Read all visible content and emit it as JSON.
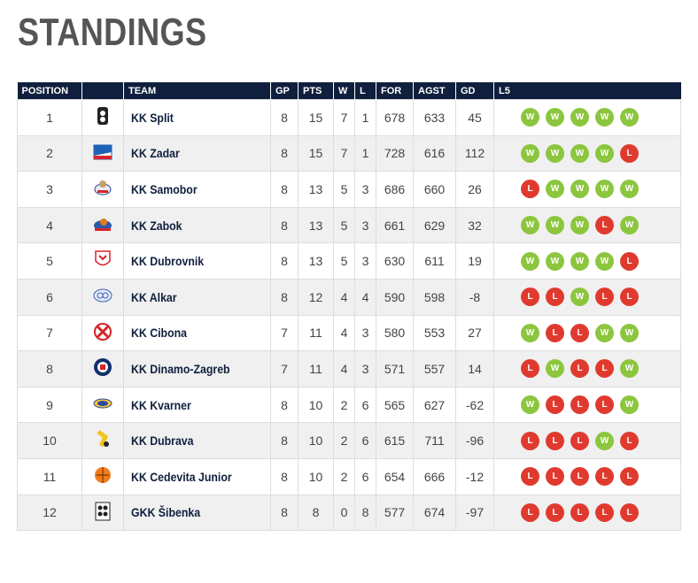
{
  "page": {
    "title": "STANDINGS"
  },
  "colors": {
    "header_bg": "#0f1f3d",
    "win": "#8cc63f",
    "loss": "#e03a2f",
    "alt_row": "#f0f0f0"
  },
  "table": {
    "headers": {
      "position": "POSITION",
      "team": "TEAM",
      "gp": "GP",
      "pts": "PTS",
      "w": "W",
      "l": "L",
      "for": "FOR",
      "agst": "AGST",
      "gd": "GD",
      "l5": "L5"
    },
    "rows": [
      {
        "pos": "1",
        "logo": "split-logo",
        "team": "KK Split",
        "gp": "8",
        "pts": "15",
        "w": "7",
        "l": "1",
        "for": "678",
        "agst": "633",
        "gd": "45",
        "l5": [
          "W",
          "W",
          "W",
          "W",
          "W"
        ]
      },
      {
        "pos": "2",
        "logo": "zadar-logo",
        "team": "KK Zadar",
        "gp": "8",
        "pts": "15",
        "w": "7",
        "l": "1",
        "for": "728",
        "agst": "616",
        "gd": "112",
        "l5": [
          "W",
          "W",
          "W",
          "W",
          "L"
        ]
      },
      {
        "pos": "3",
        "logo": "samobor-logo",
        "team": "KK Samobor",
        "gp": "8",
        "pts": "13",
        "w": "5",
        "l": "3",
        "for": "686",
        "agst": "660",
        "gd": "26",
        "l5": [
          "L",
          "W",
          "W",
          "W",
          "W"
        ]
      },
      {
        "pos": "4",
        "logo": "zabok-logo",
        "team": "KK Zabok",
        "gp": "8",
        "pts": "13",
        "w": "5",
        "l": "3",
        "for": "661",
        "agst": "629",
        "gd": "32",
        "l5": [
          "W",
          "W",
          "W",
          "L",
          "W"
        ]
      },
      {
        "pos": "5",
        "logo": "dubrovnik-logo",
        "team": "KK Dubrovnik",
        "gp": "8",
        "pts": "13",
        "w": "5",
        "l": "3",
        "for": "630",
        "agst": "611",
        "gd": "19",
        "l5": [
          "W",
          "W",
          "W",
          "W",
          "L"
        ]
      },
      {
        "pos": "6",
        "logo": "alkar-logo",
        "team": "KK Alkar",
        "gp": "8",
        "pts": "12",
        "w": "4",
        "l": "4",
        "for": "590",
        "agst": "598",
        "gd": "-8",
        "l5": [
          "L",
          "L",
          "W",
          "L",
          "L"
        ]
      },
      {
        "pos": "7",
        "logo": "cibona-logo",
        "team": "KK Cibona",
        "gp": "7",
        "pts": "11",
        "w": "4",
        "l": "3",
        "for": "580",
        "agst": "553",
        "gd": "27",
        "l5": [
          "W",
          "L",
          "L",
          "W",
          "W"
        ]
      },
      {
        "pos": "8",
        "logo": "dinamo-zagreb-logo",
        "team": "KK Dinamo-Zagreb",
        "gp": "7",
        "pts": "11",
        "w": "4",
        "l": "3",
        "for": "571",
        "agst": "557",
        "gd": "14",
        "l5": [
          "L",
          "W",
          "L",
          "L",
          "W"
        ]
      },
      {
        "pos": "9",
        "logo": "kvarner-logo",
        "team": "KK Kvarner",
        "gp": "8",
        "pts": "10",
        "w": "2",
        "l": "6",
        "for": "565",
        "agst": "627",
        "gd": "-62",
        "l5": [
          "W",
          "L",
          "L",
          "L",
          "W"
        ]
      },
      {
        "pos": "10",
        "logo": "dubrava-logo",
        "team": "KK Dubrava",
        "gp": "8",
        "pts": "10",
        "w": "2",
        "l": "6",
        "for": "615",
        "agst": "711",
        "gd": "-96",
        "l5": [
          "L",
          "L",
          "L",
          "W",
          "L"
        ]
      },
      {
        "pos": "11",
        "logo": "cedevita-junior-logo",
        "team": "KK Cedevita Junior",
        "gp": "8",
        "pts": "10",
        "w": "2",
        "l": "6",
        "for": "654",
        "agst": "666",
        "gd": "-12",
        "l5": [
          "L",
          "L",
          "L",
          "L",
          "L"
        ]
      },
      {
        "pos": "12",
        "logo": "sibenka-logo",
        "team": "GKK Šibenka",
        "gp": "8",
        "pts": "8",
        "w": "0",
        "l": "8",
        "for": "577",
        "agst": "674",
        "gd": "-97",
        "l5": [
          "L",
          "L",
          "L",
          "L",
          "L"
        ]
      }
    ]
  }
}
